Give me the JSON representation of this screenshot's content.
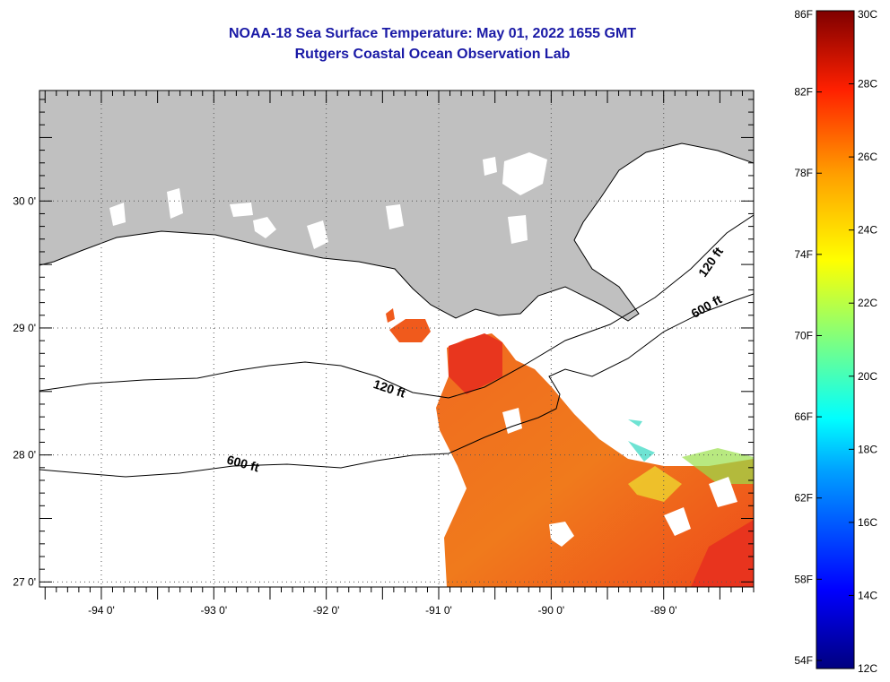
{
  "title": {
    "line1": "NOAA-18 Sea Surface Temperature:  May 01, 2022 1655 GMT",
    "line2": "Rutgers Coastal Ocean Observation Lab"
  },
  "map": {
    "lon_range": [
      -94.55,
      -88.2
    ],
    "lat_range": [
      26.96,
      30.87
    ],
    "lon_ticks": [
      {
        "value": -94,
        "label": "-94 0'"
      },
      {
        "value": -93,
        "label": "-93 0'"
      },
      {
        "value": -92,
        "label": "-92 0'"
      },
      {
        "value": -91,
        "label": "-91 0'"
      },
      {
        "value": -90,
        "label": "-90 0'"
      },
      {
        "value": -89,
        "label": "-89 0'"
      }
    ],
    "lat_ticks": [
      {
        "value": 30,
        "label": "30 0'"
      },
      {
        "value": 29,
        "label": "29 0'"
      },
      {
        "value": 28,
        "label": "28 0'"
      },
      {
        "value": 27,
        "label": "27 0'"
      }
    ],
    "contour_labels": [
      {
        "text": "120 ft",
        "lon": -91.45,
        "lat": 28.49,
        "angle": 18
      },
      {
        "text": "600 ft",
        "lon": -92.75,
        "lat": 27.9,
        "angle": 15
      },
      {
        "text": "120 ft",
        "lon": -88.55,
        "lat": 29.5,
        "angle": -55
      },
      {
        "text": "600 ft",
        "lon": -88.6,
        "lat": 29.14,
        "angle": -30
      }
    ],
    "land_color": "#c0c0c0",
    "grid": "dotted"
  },
  "colorbar": {
    "min_c": 12,
    "max_c": 30,
    "celsius_labels": [
      "30C",
      "28C",
      "26C",
      "24C",
      "22C",
      "20C",
      "18C",
      "16C",
      "14C",
      "12C"
    ],
    "fahrenheit_labels": [
      "86F",
      "82F",
      "78F",
      "74F",
      "70F",
      "66F",
      "62F",
      "58F",
      "54F"
    ]
  }
}
